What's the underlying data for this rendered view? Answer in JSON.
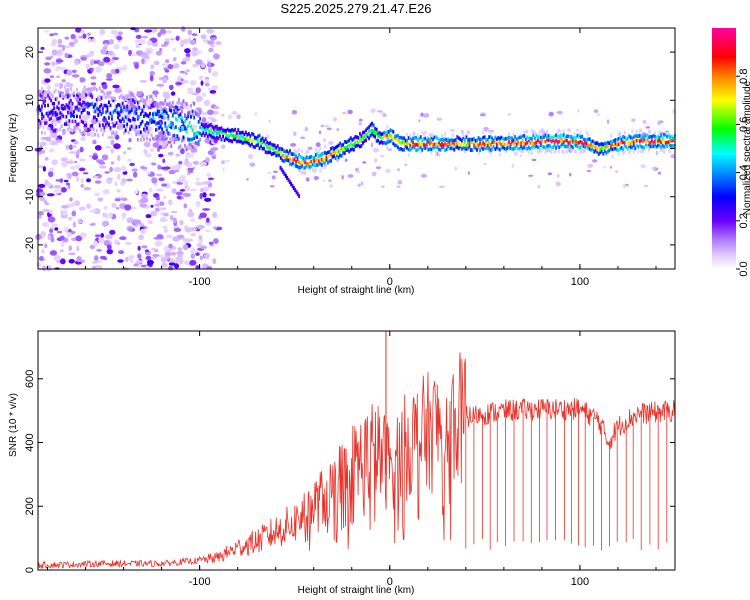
{
  "title": "S225.2025.279.21.47.E26",
  "colors": {
    "snr_line": "#e8332b",
    "trace_core": "#ff2020",
    "background": "#ffffff"
  },
  "chart_data": [
    {
      "type": "heatmap",
      "name": "spectrogram",
      "xlabel": "Height of straight line (km)",
      "ylabel": "Frequency (Hz)",
      "xlim": [
        -185,
        150
      ],
      "ylim": [
        -25,
        25
      ],
      "xticks": [
        -100,
        0,
        100
      ],
      "yticks": [
        -20,
        -10,
        0,
        10,
        20
      ],
      "xtick_labels": [
        "-100",
        "0",
        "100"
      ],
      "ytick_labels": [
        "-20",
        "-10",
        "0",
        "10",
        "20"
      ],
      "colorbar": {
        "label": "Normalized spectral amplitude",
        "range": [
          0,
          1
        ],
        "ticks": [
          0.0,
          0.2,
          0.4,
          0.6,
          0.8
        ],
        "tick_labels": [
          "0.0",
          "0.2",
          "0.4",
          "0.6",
          "0.8"
        ],
        "colormap": [
          "#ffffff",
          "#d9b8ff",
          "#8a2be2",
          "#0000ff",
          "#00ffff",
          "#00ff00",
          "#ffff00",
          "#ff8000",
          "#ff0000",
          "#ff00ff"
        ]
      },
      "trace": {
        "x": [
          -185,
          -160,
          -140,
          -120,
          -100,
          -80,
          -70,
          -60,
          -50,
          -45,
          -35,
          -25,
          -15,
          -10,
          -8,
          -5,
          -2,
          0,
          5,
          10,
          20,
          40,
          60,
          80,
          100,
          110,
          120,
          130,
          150
        ],
        "freq": [
          8,
          8,
          7,
          6,
          4,
          2.5,
          1.5,
          -0.5,
          -2.5,
          -3,
          -2,
          0,
          2,
          4,
          3,
          2,
          2.5,
          2.5,
          1,
          1,
          1,
          1,
          1,
          1.5,
          1.5,
          0,
          1,
          1.5,
          1.5
        ],
        "amplitude": [
          0.3,
          0.35,
          0.4,
          0.45,
          0.55,
          0.6,
          0.65,
          0.65,
          0.9,
          0.95,
          0.85,
          0.7,
          0.6,
          0.6,
          0.8,
          0.6,
          0.9,
          0.8,
          0.75,
          0.85,
          0.9,
          0.8,
          0.85,
          0.95,
          0.95,
          0.7,
          0.9,
          0.9,
          0.9
        ]
      }
    },
    {
      "type": "line",
      "name": "snr",
      "xlabel": "Height of straight line (km)",
      "ylabel": "SNR (10 * v/v)",
      "xlim": [
        -185,
        150
      ],
      "ylim": [
        0,
        750
      ],
      "xticks": [
        -100,
        0,
        100
      ],
      "yticks": [
        0,
        200,
        400,
        600
      ],
      "xtick_labels": [
        "-100",
        "0",
        "100"
      ],
      "ytick_labels": [
        "0",
        "200",
        "400",
        "600"
      ],
      "envelope": {
        "x": [
          -185,
          -150,
          -120,
          -100,
          -90,
          -80,
          -70,
          -60,
          -50,
          -40,
          -30,
          -20,
          -10,
          -5,
          -2,
          0,
          5,
          10,
          20,
          30,
          40,
          50,
          60,
          80,
          100,
          110,
          115,
          120,
          130,
          140,
          150
        ],
        "y": [
          15,
          20,
          20,
          30,
          40,
          70,
          90,
          120,
          150,
          200,
          250,
          320,
          370,
          360,
          340,
          330,
          360,
          400,
          430,
          460,
          480,
          490,
          500,
          505,
          505,
          470,
          400,
          450,
          490,
          495,
          500
        ]
      },
      "spike": {
        "x": -2,
        "y": 750
      },
      "dropouts": {
        "x_start": 40,
        "x_end": 150,
        "spacing": 4.2,
        "floor": 60
      }
    }
  ]
}
